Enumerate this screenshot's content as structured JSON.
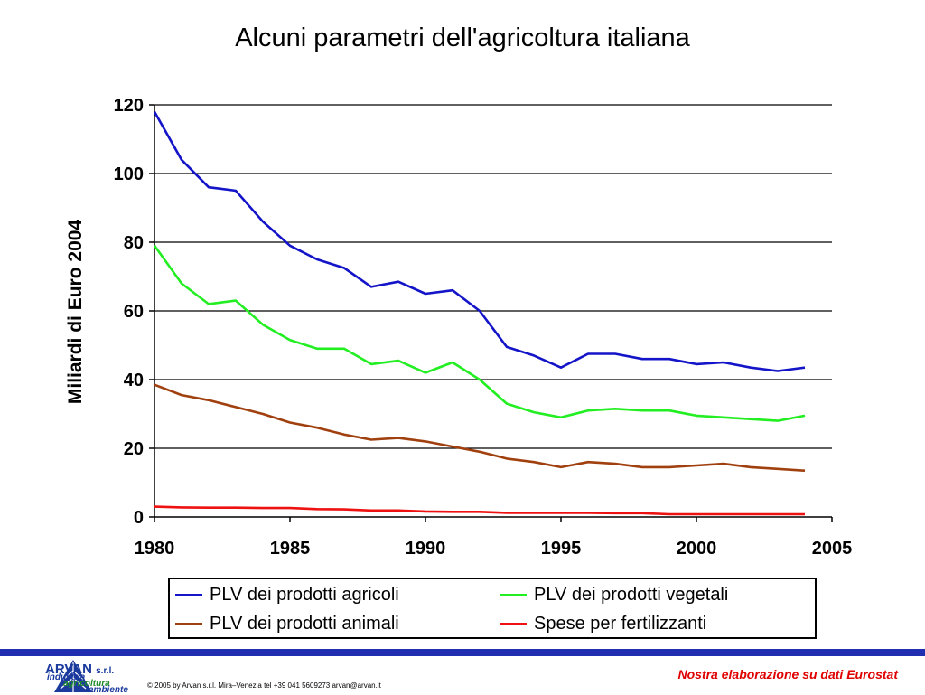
{
  "colors": {
    "background": "#ffffff",
    "footer_bar": "#1f2fb0",
    "logo_blue": "#1a3a9e",
    "logo_green": "#1f8a2a",
    "source_red": "#e00000"
  },
  "chart_data": {
    "type": "line",
    "title": "Alcuni parametri dell'agricoltura italiana",
    "xlabel": "",
    "ylabel": "Miliardi di Euro 2004",
    "xlim": [
      1980,
      2005
    ],
    "ylim": [
      0,
      120
    ],
    "xticks": [
      1980,
      1985,
      1990,
      1995,
      2000,
      2005
    ],
    "yticks": [
      0,
      20,
      40,
      60,
      80,
      100,
      120
    ],
    "grid": "horizontal",
    "legend_position": "bottom",
    "x": [
      1980,
      1981,
      1982,
      1983,
      1984,
      1985,
      1986,
      1987,
      1988,
      1989,
      1990,
      1991,
      1992,
      1993,
      1994,
      1995,
      1996,
      1997,
      1998,
      1999,
      2000,
      2001,
      2002,
      2003,
      2004
    ],
    "series": [
      {
        "name": "PLV dei prodotti agricoli",
        "color": "#1414c8",
        "values": [
          118,
          104,
          96,
          95,
          86,
          79,
          75,
          72.5,
          67,
          68.5,
          65,
          66,
          60,
          49.5,
          47,
          43.5,
          47.5,
          47.5,
          46,
          46,
          44.5,
          45,
          43.5,
          42.5,
          43.5
        ]
      },
      {
        "name": "PLV dei prodotti vegetali",
        "color": "#22ee22",
        "values": [
          79,
          68,
          62,
          63,
          56,
          51.5,
          49,
          49,
          44.5,
          45.5,
          42,
          45,
          40,
          33,
          30.5,
          29,
          31,
          31.5,
          31,
          31,
          29.5,
          29,
          28.5,
          28,
          29.5
        ]
      },
      {
        "name": "PLV dei prodotti animali",
        "color": "#a0400f",
        "values": [
          38.5,
          35.5,
          34,
          32,
          30,
          27.5,
          26,
          24,
          22.5,
          23,
          22,
          20.5,
          19,
          17,
          16,
          14.5,
          16,
          15.5,
          14.5,
          14.5,
          15,
          15.5,
          14.5,
          14,
          13.5
        ]
      },
      {
        "name": "Spese per fertilizzanti",
        "color": "#ee1111",
        "values": [
          3,
          2.8,
          2.7,
          2.7,
          2.6,
          2.6,
          2.3,
          2.2,
          1.9,
          1.9,
          1.6,
          1.5,
          1.5,
          1.2,
          1.2,
          1.2,
          1.2,
          1.1,
          1.1,
          0.8,
          0.8,
          0.8,
          0.8,
          0.8,
          0.8
        ]
      }
    ]
  },
  "footer": {
    "logo_name": "ARVAN",
    "logo_suffix": "s.r.l.",
    "logo_line1": "industria",
    "logo_line2": "agricoltura",
    "logo_line3": "ambiente",
    "copyright": "© 2005 by Arvan s.r.l. Mira–Venezia tel +39 041 5609273 arvan@arvan.it",
    "source_note": "Nostra elaborazione su dati Eurostat"
  }
}
